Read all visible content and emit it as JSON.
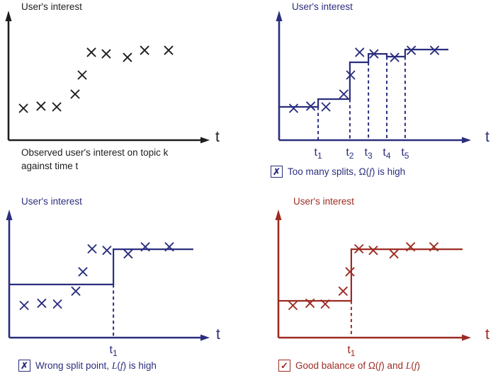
{
  "colors": {
    "black": "#1e1e1e",
    "navy": "#2b2e7e",
    "red": "#9c2b22",
    "background": "#ffffff"
  },
  "panels": {
    "observed": {
      "ylabel": "User's interest",
      "xlabel": "t",
      "caption_line1": "Observed user's interest on topic k",
      "caption_line2": "against time t"
    },
    "too_many_splits": {
      "ylabel": "User's interest",
      "xlabel": "t",
      "mark": "✗",
      "caption_p1": "Too many splits, Ω(",
      "caption_f": "f",
      "caption_p2": ") is high"
    },
    "wrong_split": {
      "ylabel": "User's interest",
      "xlabel": "t",
      "mark": "✗",
      "caption_p1": "Wrong split point, ",
      "caption_L": "L",
      "caption_p2": "(",
      "caption_f": "f",
      "caption_p3": ") is high"
    },
    "good_balance": {
      "ylabel": "User's interest",
      "xlabel": "t",
      "mark": "✓",
      "caption_p1": "Good balance of Ω(",
      "caption_f1": "f",
      "caption_p2": ") and ",
      "caption_L": "L",
      "caption_p3": "(",
      "caption_f2": "f",
      "caption_p4": ")"
    }
  },
  "chart_data": [
    {
      "id": "observed",
      "type": "scatter",
      "title": "User's interest",
      "xlabel": "t",
      "x": [
        0.76,
        1.65,
        2.45,
        3.38,
        3.74,
        4.21,
        4.96,
        6.04,
        6.91,
        8.13
      ],
      "y": [
        2.53,
        2.7,
        2.64,
        3.65,
        5.17,
        6.97,
        6.85,
        6.57,
        7.13,
        7.13
      ],
      "caption": "Observed user's interest on topic k against time t",
      "color": "#1e1e1e",
      "axes_numeric": false
    },
    {
      "id": "too-many-splits",
      "type": "scatter+step",
      "title": "User's interest",
      "xlabel": "t",
      "x": [
        0.76,
        1.65,
        2.45,
        3.38,
        3.74,
        4.21,
        4.96,
        6.04,
        6.91,
        8.13
      ],
      "y": [
        2.53,
        2.7,
        2.64,
        3.65,
        5.17,
        6.97,
        6.85,
        6.57,
        7.13,
        7.13
      ],
      "step": {
        "boundaries": [
          2.04,
          3.7,
          4.67,
          5.63,
          6.59
        ],
        "levels": [
          2.64,
          3.26,
          6.18,
          6.85,
          6.63,
          7.19
        ],
        "x_end": 8.85,
        "split_labels": [
          "t1",
          "t2",
          "t3",
          "t4",
          "t5"
        ]
      },
      "caption": "✗ Too many splits, Ω(f) is high",
      "color": "#2b2e7e"
    },
    {
      "id": "wrong-split",
      "type": "scatter+step",
      "title": "User's interest",
      "xlabel": "t",
      "x": [
        0.76,
        1.65,
        2.45,
        3.38,
        3.74,
        4.21,
        4.96,
        6.04,
        6.91,
        8.13
      ],
      "y": [
        2.53,
        2.7,
        2.64,
        3.65,
        5.17,
        6.97,
        6.85,
        6.57,
        7.13,
        7.13
      ],
      "step": {
        "boundaries": [
          5.29
        ],
        "levels": [
          4.17,
          6.94
        ],
        "x_end": 9.35,
        "split_labels": [
          "t1"
        ]
      },
      "caption": "✗ Wrong split point, L(f) is high",
      "color": "#2b2e7e"
    },
    {
      "id": "good-balance",
      "type": "scatter+step",
      "title": "User's interest",
      "xlabel": "t",
      "x": [
        0.76,
        1.65,
        2.45,
        3.38,
        3.74,
        4.21,
        4.96,
        6.04,
        6.91,
        8.13
      ],
      "y": [
        2.53,
        2.7,
        2.64,
        3.65,
        5.17,
        6.97,
        6.85,
        6.57,
        7.13,
        7.13
      ],
      "step": {
        "boundaries": [
          3.81
        ],
        "levels": [
          2.89,
          6.94
        ],
        "x_end": 9.63,
        "split_labels": [
          "t1"
        ]
      },
      "caption": "✓ Good balance of Ω(f) and L(f)",
      "color": "#9c2b22"
    }
  ]
}
